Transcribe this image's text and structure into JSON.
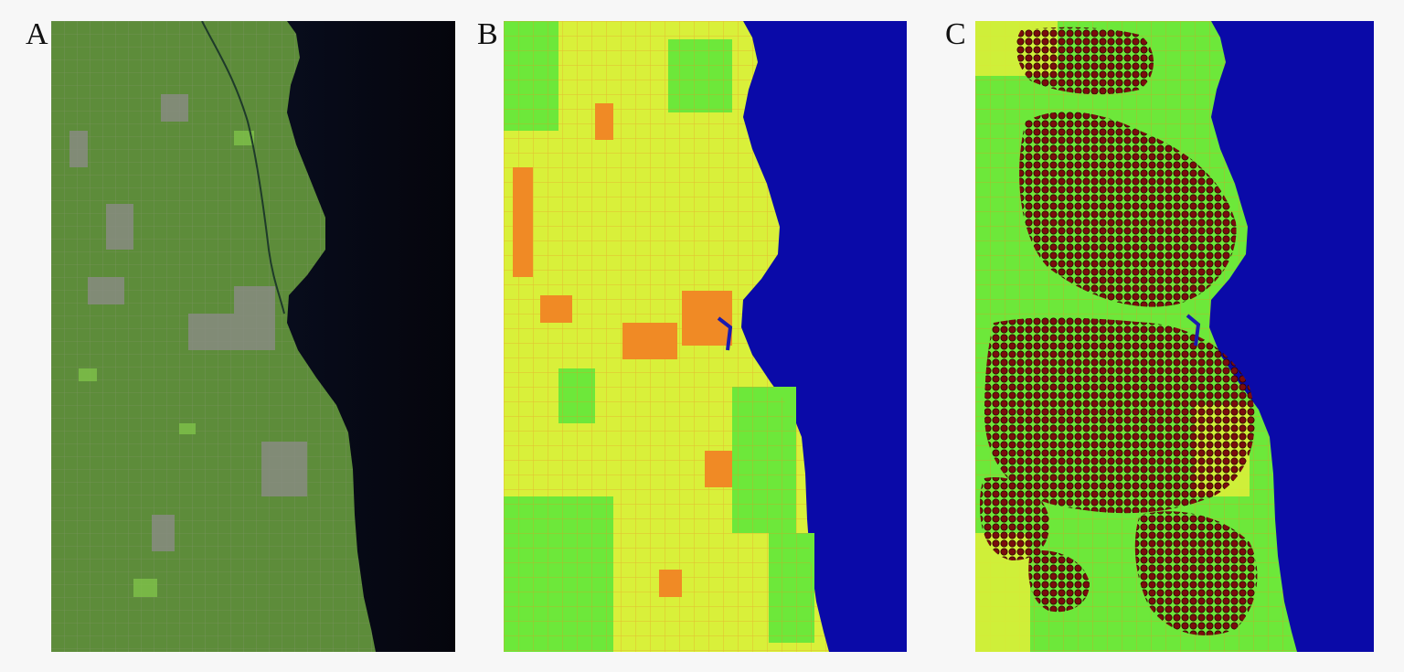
{
  "figure": {
    "panels": [
      {
        "label": "A"
      },
      {
        "label": "B"
      },
      {
        "label": "C"
      }
    ]
  },
  "colors": {
    "satellite_land": "#5d8c3a",
    "satellite_water": "#07070f",
    "class_water": "#0a0aa8",
    "class_green": "#6de83a",
    "class_yellow": "#d9f03a",
    "class_orange": "#f08a25",
    "points_fill": "#7a0d0d"
  }
}
